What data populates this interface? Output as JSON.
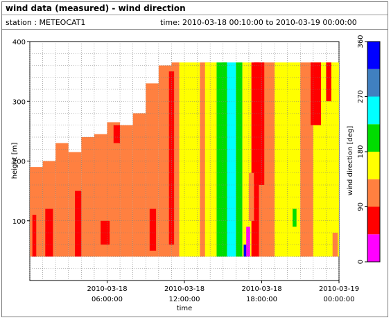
{
  "header": {
    "title": "wind data (measured) - wind direction",
    "station": "station : METEOCAT1",
    "time_range": "time: 2010-03-18 00:10:00 to 2010-03-19 00:00:00"
  },
  "chart_data": {
    "type": "heatmap",
    "xlabel": "time",
    "ylabel": "height [m]",
    "colorbar_label": "wind direction [deg]",
    "xlim": [
      0,
      24
    ],
    "ylim": [
      0,
      400
    ],
    "x_unit": "hours since 2010-03-18 00:00:00",
    "x_ticks": [
      {
        "x": 6,
        "label1": "2010-03-18",
        "label2": "06:00:00"
      },
      {
        "x": 12,
        "label1": "2010-03-18",
        "label2": "12:00:00"
      },
      {
        "x": 18,
        "label1": "2010-03-18",
        "label2": "18:00:00"
      },
      {
        "x": 24,
        "label1": "2010-03-19",
        "label2": "00:00:00"
      }
    ],
    "y_ticks": [
      100,
      200,
      300,
      400
    ],
    "colorbar_ticks": [
      0,
      90,
      180,
      270,
      360
    ],
    "color_levels": [
      {
        "from": 0,
        "to": 45,
        "color": "#ff00ff"
      },
      {
        "from": 45,
        "to": 90,
        "color": "#ff0000"
      },
      {
        "from": 90,
        "to": 135,
        "color": "#ff8040"
      },
      {
        "from": 135,
        "to": 180,
        "color": "#ffff00"
      },
      {
        "from": 180,
        "to": 225,
        "color": "#00dd00"
      },
      {
        "from": 225,
        "to": 270,
        "color": "#00ffff"
      },
      {
        "from": 270,
        "to": 315,
        "color": "#4080c0"
      },
      {
        "from": 315,
        "to": 360,
        "color": "#0000ff"
      }
    ],
    "height_min": 40,
    "bands": [
      {
        "x0": 0.0,
        "x1": 1.0,
        "top": 190,
        "value": 112
      },
      {
        "x0": 1.0,
        "x1": 2.0,
        "top": 200,
        "value": 112
      },
      {
        "x0": 2.0,
        "x1": 3.0,
        "top": 230,
        "value": 112
      },
      {
        "x0": 3.0,
        "x1": 4.0,
        "top": 215,
        "value": 112
      },
      {
        "x0": 4.0,
        "x1": 5.0,
        "top": 240,
        "value": 112
      },
      {
        "x0": 5.0,
        "x1": 6.0,
        "top": 245,
        "value": 112
      },
      {
        "x0": 6.0,
        "x1": 7.0,
        "top": 265,
        "value": 112
      },
      {
        "x0": 7.0,
        "x1": 8.0,
        "top": 260,
        "value": 112
      },
      {
        "x0": 8.0,
        "x1": 9.0,
        "top": 280,
        "value": 112
      },
      {
        "x0": 9.0,
        "x1": 10.0,
        "top": 330,
        "value": 112
      },
      {
        "x0": 10.0,
        "x1": 11.0,
        "top": 360,
        "value": 112
      },
      {
        "x0": 11.0,
        "x1": 11.6,
        "top": 365,
        "value": 112
      },
      {
        "x0": 11.6,
        "x1": 13.2,
        "top": 365,
        "value": 157
      },
      {
        "x0": 13.2,
        "x1": 14.0,
        "top": 365,
        "value": 112
      },
      {
        "x0": 14.0,
        "x1": 14.5,
        "top": 365,
        "value": 157
      },
      {
        "x0": 14.5,
        "x1": 15.3,
        "top": 365,
        "value": 202
      },
      {
        "x0": 15.3,
        "x1": 16.0,
        "top": 365,
        "value": 247
      },
      {
        "x0": 16.0,
        "x1": 16.5,
        "top": 365,
        "value": 202
      },
      {
        "x0": 16.5,
        "x1": 17.2,
        "top": 365,
        "value": 157
      },
      {
        "x0": 17.2,
        "x1": 17.8,
        "top": 365,
        "value": 67
      },
      {
        "x0": 17.8,
        "x1": 19.0,
        "top": 365,
        "value": 112
      },
      {
        "x0": 19.0,
        "x1": 21.0,
        "top": 365,
        "value": 157
      },
      {
        "x0": 21.0,
        "x1": 22.0,
        "top": 365,
        "value": 112
      },
      {
        "x0": 22.0,
        "x1": 24.0,
        "top": 365,
        "value": 157
      }
    ],
    "patches": [
      {
        "x0": 0.2,
        "x1": 0.5,
        "y0": 40,
        "y1": 110,
        "value": 67
      },
      {
        "x0": 1.2,
        "x1": 1.8,
        "y0": 40,
        "y1": 120,
        "value": 67
      },
      {
        "x0": 3.5,
        "x1": 4.0,
        "y0": 40,
        "y1": 150,
        "value": 67
      },
      {
        "x0": 5.5,
        "x1": 6.2,
        "y0": 60,
        "y1": 100,
        "value": 67
      },
      {
        "x0": 6.5,
        "x1": 7.0,
        "y0": 230,
        "y1": 260,
        "value": 67
      },
      {
        "x0": 9.3,
        "x1": 9.8,
        "y0": 50,
        "y1": 120,
        "value": 67
      },
      {
        "x0": 10.8,
        "x1": 11.2,
        "y0": 60,
        "y1": 350,
        "value": 67
      },
      {
        "x0": 13.6,
        "x1": 14.0,
        "y0": 40,
        "y1": 365,
        "value": 157
      },
      {
        "x0": 14.9,
        "x1": 15.3,
        "y0": 40,
        "y1": 365,
        "value": 202
      },
      {
        "x0": 16.8,
        "x1": 17.1,
        "y0": 40,
        "y1": 90,
        "value": 22
      },
      {
        "x0": 16.6,
        "x1": 16.8,
        "y0": 40,
        "y1": 60,
        "value": 337
      },
      {
        "x0": 17.0,
        "x1": 17.4,
        "y0": 100,
        "y1": 180,
        "value": 112
      },
      {
        "x0": 17.4,
        "x1": 18.2,
        "y0": 160,
        "y1": 365,
        "value": 67
      },
      {
        "x0": 20.4,
        "x1": 20.7,
        "y0": 90,
        "y1": 120,
        "value": 202
      },
      {
        "x0": 21.8,
        "x1": 22.6,
        "y0": 260,
        "y1": 365,
        "value": 67
      },
      {
        "x0": 23.0,
        "x1": 23.4,
        "y0": 300,
        "y1": 365,
        "value": 67
      },
      {
        "x0": 23.5,
        "x1": 23.9,
        "y0": 40,
        "y1": 80,
        "value": 112
      }
    ]
  }
}
